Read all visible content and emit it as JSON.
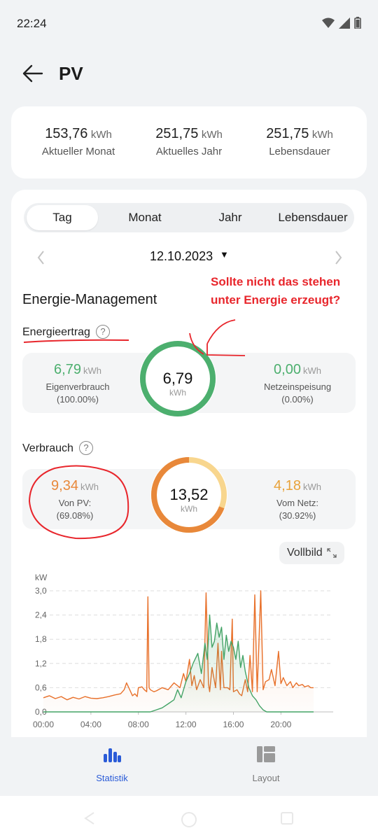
{
  "status_bar": {
    "time": "22:24"
  },
  "header": {
    "title": "PV"
  },
  "summary": [
    {
      "value": "153,76",
      "unit": "kWh",
      "label": "Aktueller Monat"
    },
    {
      "value": "251,75",
      "unit": "kWh",
      "label": "Aktuelles Jahr"
    },
    {
      "value": "251,75",
      "unit": "kWh",
      "label": "Lebensdauer"
    }
  ],
  "tabs": [
    "Tag",
    "Monat",
    "Jahr",
    "Lebensdauer"
  ],
  "active_tab": "Tag",
  "date": "12.10.2023",
  "section_title": "Energie-Management",
  "annotation": "Sollte nicht das stehen unter Energie erzeugt?",
  "energieertrag": {
    "title": "Energieertrag",
    "help": "?",
    "left": {
      "value": "6,79",
      "unit": "kWh",
      "label": "Eigenverbrauch",
      "pct": "(100.00%)"
    },
    "center": {
      "value": "6,79",
      "unit": "kWh"
    },
    "right": {
      "value": "0,00",
      "unit": "kWh",
      "label": "Netzeinspeisung",
      "pct": "(0.00%)"
    },
    "ring_fraction": 1.0
  },
  "verbrauch": {
    "title": "Verbrauch",
    "help": "?",
    "left": {
      "value": "9,34",
      "unit": "kWh",
      "label": "Von PV:",
      "pct": "(69.08%)"
    },
    "center": {
      "value": "13,52",
      "unit": "kWh"
    },
    "right": {
      "value": "4,18",
      "unit": "kWh",
      "label": "Vom Netz:",
      "pct": "(30.92%)"
    },
    "ring_fraction": 0.6908
  },
  "vollbild_label": "Vollbild",
  "colors": {
    "green": "#4caf6e",
    "orange": "#e8883a",
    "light_orange": "#f8d68e",
    "accent_blue": "#2a5bd7",
    "annotation_red": "#e8262c"
  },
  "chart_data": {
    "type": "line",
    "ylabel": "kW",
    "ylim": [
      0,
      3.0
    ],
    "y_ticks": [
      "0,0",
      "0,6",
      "1,2",
      "1,8",
      "2,4",
      "3,0"
    ],
    "x_ticks": [
      "00:00",
      "04:00",
      "08:00",
      "12:00",
      "16:00",
      "20:00"
    ],
    "xlim_hours": [
      0,
      22.75
    ],
    "series": [
      {
        "color": "#e8702a",
        "x": [
          0,
          0.5,
          1,
          1.5,
          2,
          2.5,
          3,
          3.5,
          4,
          4.5,
          5,
          5.5,
          6,
          6.5,
          6.8,
          7,
          7.5,
          7.7,
          7.9,
          8,
          8.3,
          8.5,
          8.7,
          8.8,
          8.9,
          9,
          9.3,
          9.5,
          10,
          10.5,
          11,
          11.5,
          11.8,
          12,
          12.3,
          12.5,
          12.7,
          12.9,
          13.2,
          13.5,
          13.7,
          13.9,
          14,
          14.2,
          14.5,
          14.7,
          14.9,
          15,
          15.2,
          15.5,
          15.7,
          15.9,
          16,
          16.3,
          16.5,
          16.7,
          17,
          17.2,
          17.4,
          17.6,
          17.8,
          18,
          18.3,
          18.5,
          18.7,
          19,
          19.2,
          19.5,
          19.8,
          20,
          20.2,
          20.5,
          20.8,
          21,
          21.3,
          21.5,
          21.8,
          22,
          22.3,
          22.5,
          22.75
        ],
        "values": [
          0.35,
          0.4,
          0.33,
          0.38,
          0.3,
          0.36,
          0.32,
          0.38,
          0.34,
          0.33,
          0.35,
          0.38,
          0.42,
          0.45,
          0.55,
          0.72,
          0.4,
          0.45,
          0.38,
          0.6,
          0.62,
          0.55,
          0.5,
          2.85,
          0.6,
          0.55,
          0.5,
          0.52,
          0.6,
          0.55,
          0.72,
          0.6,
          0.95,
          0.75,
          1.3,
          0.65,
          0.9,
          0.55,
          0.8,
          0.6,
          2.95,
          0.7,
          0.5,
          1.1,
          0.6,
          1.7,
          0.55,
          1.5,
          0.6,
          0.6,
          0.55,
          2.3,
          0.5,
          0.55,
          0.45,
          0.4,
          0.8,
          0.5,
          1.4,
          0.5,
          2.9,
          0.5,
          3.0,
          0.55,
          0.75,
          0.8,
          1.05,
          0.65,
          1.5,
          0.7,
          0.85,
          0.65,
          0.75,
          0.6,
          0.72,
          0.65,
          0.68,
          0.62,
          0.65,
          0.6,
          0.6
        ]
      },
      {
        "color": "#43a366",
        "x": [
          0,
          6,
          9,
          9.5,
          10,
          10.5,
          11,
          11.3,
          11.6,
          12,
          12.3,
          12.6,
          13,
          13.3,
          13.6,
          13.8,
          14,
          14.2,
          14.4,
          14.6,
          14.8,
          15,
          15.2,
          15.4,
          15.6,
          15.8,
          16,
          16.2,
          16.4,
          16.6,
          16.8,
          17,
          17.3,
          17.6,
          17.9,
          18.2,
          18.5,
          18.8,
          19,
          22.75
        ],
        "values": [
          0,
          0,
          0,
          0.05,
          0.1,
          0.2,
          0.3,
          0.55,
          0.35,
          0.75,
          0.95,
          1.2,
          1.45,
          0.95,
          1.7,
          1.3,
          2.4,
          1.6,
          1.75,
          2.2,
          1.85,
          2.1,
          1.3,
          1.9,
          1.5,
          1.75,
          1.6,
          1.3,
          1.75,
          1.1,
          1.4,
          1.0,
          0.6,
          0.4,
          0.3,
          0.15,
          0.05,
          0,
          0,
          0
        ]
      }
    ]
  },
  "nav": [
    {
      "label": "Statistik",
      "active": true,
      "icon": "bar-chart-icon"
    },
    {
      "label": "Layout",
      "active": false,
      "icon": "layout-icon"
    }
  ]
}
